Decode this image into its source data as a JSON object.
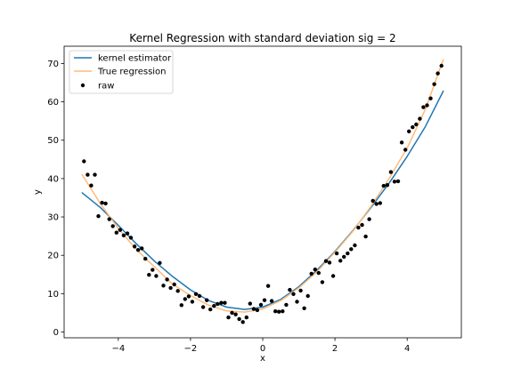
{
  "chart_data": {
    "type": "scatter",
    "title": "Kernel Regression with standard deviation sig = 2",
    "xlabel": "x",
    "ylabel": "y",
    "xlim": [
      -5.5,
      5.5
    ],
    "ylim": [
      -1.5,
      74.5
    ],
    "xticks": [
      -4,
      -2,
      0,
      2,
      4
    ],
    "xtick_labels": [
      "−4",
      "−2",
      "0",
      "2",
      "4"
    ],
    "yticks": [
      0,
      10,
      20,
      30,
      40,
      50,
      60,
      70
    ],
    "ytick_labels": [
      "0",
      "10",
      "20",
      "30",
      "40",
      "50",
      "60",
      "70"
    ],
    "grid": false,
    "legend_position": "top-left",
    "series": [
      {
        "name": "kernel estimator",
        "kind": "line",
        "color": "#1f77b4",
        "x": [
          -5.0,
          -4.5,
          -4.0,
          -3.5,
          -3.0,
          -2.5,
          -2.0,
          -1.5,
          -1.0,
          -0.5,
          0.0,
          0.5,
          1.0,
          1.5,
          2.0,
          2.5,
          3.0,
          3.5,
          4.0,
          4.5,
          5.0
        ],
        "y": [
          36.3,
          32.5,
          27.8,
          23.0,
          18.5,
          14.5,
          11.0,
          8.2,
          6.5,
          5.9,
          6.5,
          8.5,
          11.8,
          16.1,
          21.0,
          26.5,
          32.5,
          38.8,
          45.8,
          53.5,
          62.8
        ]
      },
      {
        "name": "True regression",
        "kind": "line",
        "color": "#ffbb78",
        "x": [
          -5.0,
          -4.5,
          -4.0,
          -3.5,
          -3.0,
          -2.5,
          -2.0,
          -1.5,
          -1.0,
          -0.5,
          0.0,
          0.5,
          1.0,
          1.5,
          2.0,
          2.5,
          3.0,
          3.5,
          4.0,
          4.5,
          5.0
        ],
        "y": [
          41.0,
          33.5,
          27.0,
          21.5,
          17.0,
          12.5,
          9.5,
          7.0,
          5.5,
          5.2,
          6.0,
          8.2,
          11.5,
          15.7,
          20.8,
          26.3,
          32.8,
          40.0,
          48.0,
          58.0,
          71.0
        ]
      },
      {
        "name": "raw",
        "kind": "scatter",
        "color": "#000000",
        "x": [
          -4.95,
          -4.85,
          -4.75,
          -4.65,
          -4.55,
          -4.45,
          -4.35,
          -4.25,
          -4.15,
          -4.05,
          -3.95,
          -3.85,
          -3.75,
          -3.65,
          -3.55,
          -3.45,
          -3.35,
          -3.25,
          -3.15,
          -3.05,
          -2.95,
          -2.85,
          -2.75,
          -2.65,
          -2.55,
          -2.45,
          -2.35,
          -2.25,
          -2.15,
          -2.05,
          -1.95,
          -1.85,
          -1.75,
          -1.65,
          -1.55,
          -1.45,
          -1.35,
          -1.25,
          -1.15,
          -1.05,
          -0.95,
          -0.85,
          -0.75,
          -0.65,
          -0.55,
          -0.45,
          -0.35,
          -0.25,
          -0.15,
          -0.05,
          0.05,
          0.15,
          0.25,
          0.35,
          0.45,
          0.55,
          0.65,
          0.75,
          0.85,
          0.95,
          1.05,
          1.15,
          1.25,
          1.35,
          1.45,
          1.55,
          1.65,
          1.75,
          1.85,
          1.95,
          2.05,
          2.15,
          2.25,
          2.35,
          2.45,
          2.55,
          2.65,
          2.75,
          2.85,
          2.95,
          3.05,
          3.15,
          3.25,
          3.35,
          3.45,
          3.55,
          3.65,
          3.75,
          3.85,
          3.95,
          4.05,
          4.15,
          4.25,
          4.35,
          4.45,
          4.55,
          4.65,
          4.75,
          4.85,
          4.95
        ],
        "y": [
          44.5,
          41.0,
          38.2,
          41.0,
          30.2,
          33.7,
          33.5,
          29.4,
          27.6,
          25.9,
          26.6,
          25.2,
          25.7,
          24.6,
          22.3,
          21.4,
          21.8,
          19.1,
          14.9,
          16.2,
          14.6,
          18.0,
          12.1,
          13.7,
          11.5,
          12.4,
          10.7,
          7.0,
          8.6,
          9.3,
          7.9,
          9.9,
          9.4,
          6.5,
          8.3,
          5.9,
          6.8,
          7.3,
          7.6,
          7.6,
          3.8,
          5.0,
          4.6,
          3.4,
          2.6,
          3.8,
          7.4,
          6.0,
          5.7,
          7.1,
          8.3,
          12.0,
          8.1,
          5.4,
          5.3,
          5.4,
          7.1,
          11.0,
          9.9,
          7.9,
          10.8,
          6.2,
          9.4,
          15.2,
          16.3,
          15.4,
          13.0,
          18.5,
          18.1,
          14.6,
          20.5,
          18.6,
          19.6,
          20.5,
          21.6,
          22.6,
          27.2,
          27.9,
          24.9,
          29.4,
          34.2,
          33.4,
          33.6,
          38.1,
          38.3,
          41.7,
          39.2,
          39.3,
          49.4,
          47.5,
          52.3,
          53.4,
          54.1,
          55.6,
          58.6,
          59.1,
          60.9,
          64.6,
          67.4,
          69.4
        ]
      }
    ]
  }
}
